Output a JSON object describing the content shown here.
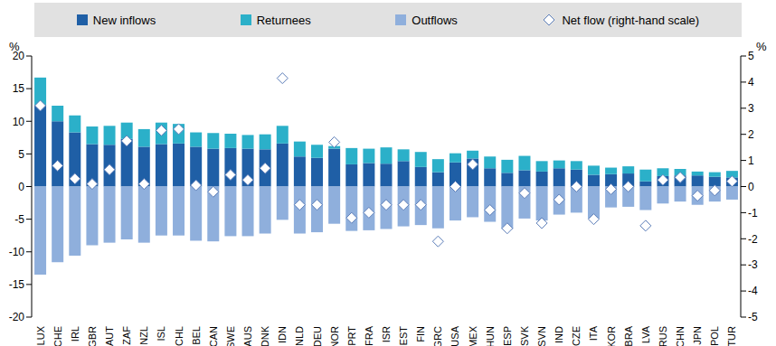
{
  "chart_data": {
    "type": "bar",
    "stacked": true,
    "grid": false,
    "legend": "top",
    "y_label": "%",
    "y2_label": "%",
    "categories": [
      "LUX",
      "CHE",
      "IRL",
      "GBR",
      "AUT",
      "ZAF",
      "NZL",
      "ISL",
      "CHL",
      "BEL",
      "CAN",
      "SWE",
      "AUS",
      "DNK",
      "IDN",
      "NLD",
      "DEU",
      "NOR",
      "PRT",
      "FRA",
      "ISR",
      "EST",
      "FIN",
      "GRC",
      "USA",
      "MEX",
      "HUN",
      "ESP",
      "SVK",
      "SVN",
      "IND",
      "CZE",
      "ITA",
      "KOR",
      "BRA",
      "LVA",
      "RUS",
      "CHN",
      "JPN",
      "POL",
      "TUR"
    ],
    "ylim": [
      -20,
      20
    ],
    "yticks": [
      -20,
      -15,
      -10,
      -5,
      0,
      5,
      10,
      15,
      20
    ],
    "y2lim": [
      -5,
      5
    ],
    "y2ticks": [
      -5,
      -4,
      -3,
      -2,
      -1,
      0,
      1,
      2,
      3,
      4,
      5
    ],
    "series": [
      {
        "name": "New inflows",
        "type": "bar",
        "color": "#1f5fa6",
        "values": [
          12.5,
          10,
          8.3,
          6.5,
          6.4,
          7.3,
          6.1,
          6.5,
          6.6,
          6.1,
          5.8,
          5.9,
          5.8,
          5.7,
          6.6,
          4.6,
          4.4,
          5.8,
          3.4,
          3.6,
          3.5,
          3.9,
          3.0,
          2.2,
          3.7,
          4.3,
          2.8,
          2.1,
          2.5,
          2.3,
          2.8,
          2.6,
          1.8,
          1.9,
          2.0,
          0.8,
          1.6,
          1.7,
          1.7,
          1.5,
          1.4
        ]
      },
      {
        "name": "Returnees",
        "type": "bar",
        "color": "#2bb0c9",
        "values": [
          4.2,
          2.4,
          2.6,
          2.7,
          2.9,
          2.5,
          2.7,
          3.3,
          3.0,
          2.2,
          2.4,
          2.2,
          2.1,
          2.3,
          2.7,
          2.3,
          2.0,
          0.4,
          2.5,
          2.2,
          2.5,
          1.8,
          2.3,
          2.0,
          1.4,
          1.2,
          1.8,
          2.0,
          2.2,
          1.6,
          1.2,
          1.3,
          1.4,
          1.0,
          1.1,
          1.8,
          1.2,
          1.0,
          0.6,
          0.7,
          1.0
        ]
      },
      {
        "name": "Outflows",
        "type": "bar",
        "color": "#8fafdc",
        "values": [
          -13.5,
          -11.6,
          -10.6,
          -9.0,
          -8.6,
          -8.1,
          -8.6,
          -7.5,
          -7.5,
          -8.3,
          -8.4,
          -7.6,
          -7.6,
          -7.2,
          -5.1,
          -7.2,
          -7.0,
          -5.7,
          -6.8,
          -6.7,
          -6.5,
          -6.1,
          -5.9,
          -6.4,
          -5.2,
          -4.7,
          -5.4,
          -6.5,
          -4.9,
          -5.2,
          -4.3,
          -4.0,
          -4.9,
          -3.2,
          -3.1,
          -3.6,
          -2.6,
          -2.3,
          -2.8,
          -2.3,
          -2.0
        ]
      },
      {
        "name": "Net flow (right-hand scale)",
        "type": "scatter",
        "marker": "diamond",
        "axis": "y2",
        "color": "#5b7db8",
        "values": [
          3.1,
          0.8,
          0.3,
          0.1,
          0.65,
          1.75,
          0.1,
          2.15,
          2.2,
          0.05,
          -0.2,
          0.45,
          0.25,
          0.7,
          4.15,
          -0.7,
          -0.7,
          1.7,
          -1.2,
          -1.0,
          -0.7,
          -0.7,
          -0.7,
          -2.1,
          0.0,
          0.85,
          -0.9,
          -1.6,
          -0.25,
          -1.4,
          -0.5,
          0.0,
          -1.25,
          -0.1,
          0.0,
          -1.5,
          0.25,
          0.35,
          -0.35,
          -0.15,
          0.2
        ]
      }
    ]
  }
}
